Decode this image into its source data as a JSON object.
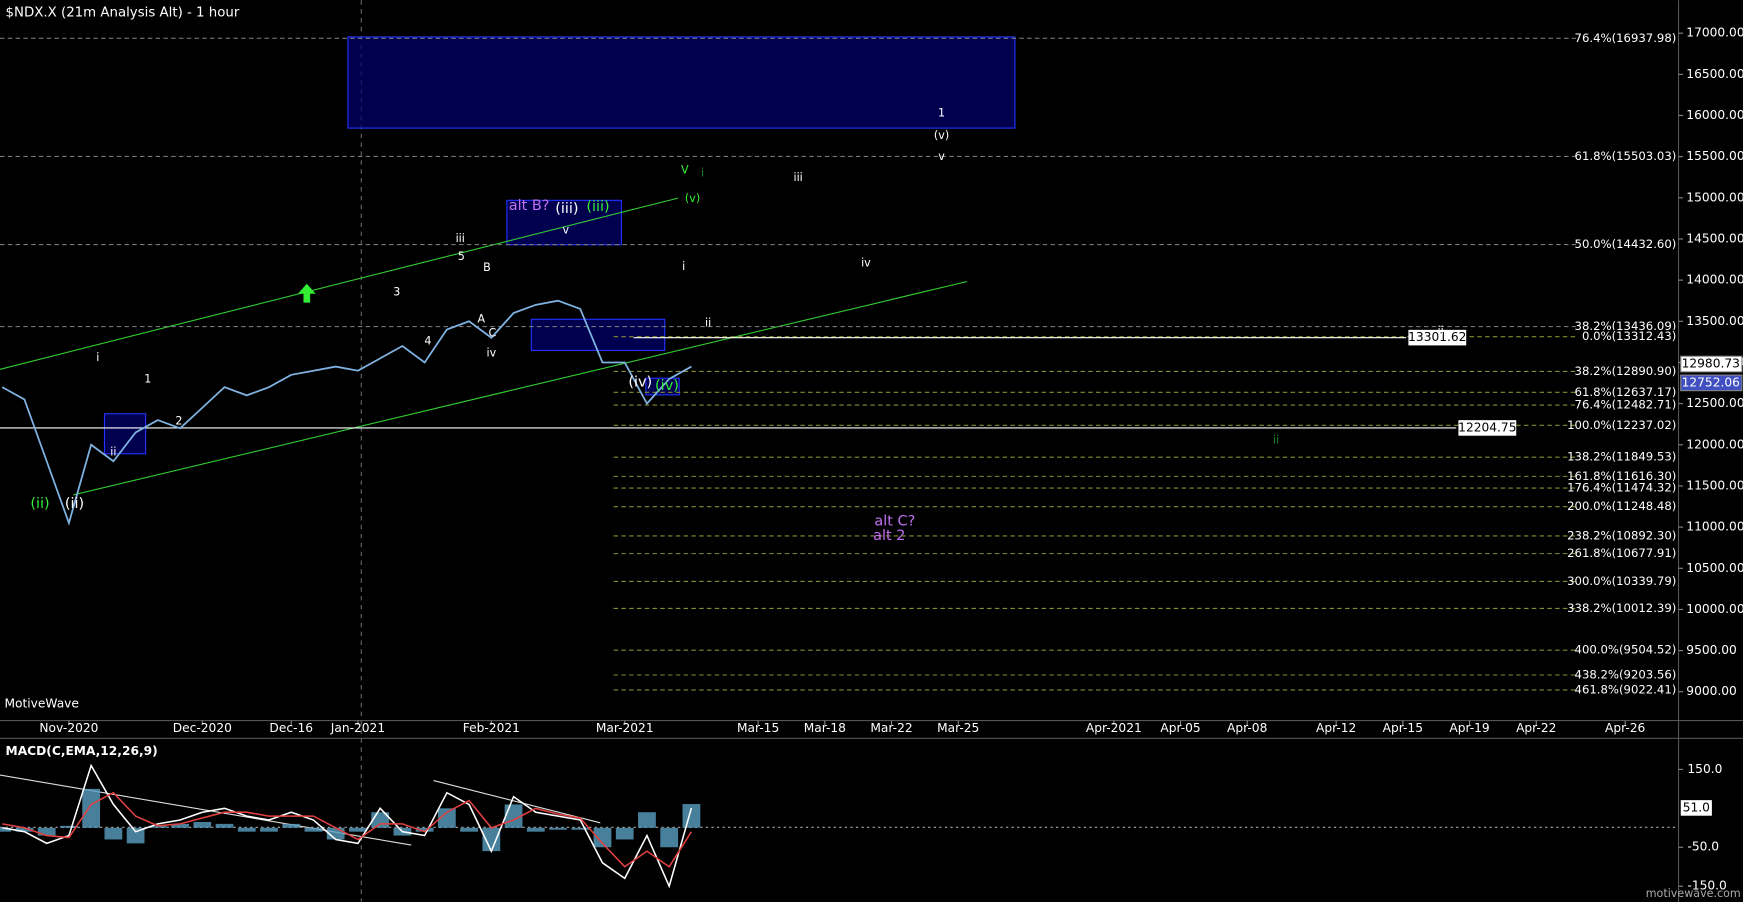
{
  "chart_data": [
    {
      "type": "line",
      "title": "$NDX.X (21m Analysis Alt) - 1 hour",
      "watermark": "MotiveWave",
      "color": "#7fb2e0",
      "categories": [
        null,
        null,
        null,
        "Nov-2020",
        null,
        null,
        null,
        null,
        null,
        "Dec-2020",
        null,
        null,
        null,
        "Dec-16",
        null,
        null,
        "Jan-2021",
        null,
        null,
        null,
        null,
        null,
        "Feb-2021",
        null,
        null,
        null,
        null,
        null,
        "Mar-2021",
        null,
        null,
        null,
        null,
        null,
        "Mar-15",
        null,
        null,
        "Mar-18",
        null,
        null,
        "Mar-22",
        null,
        null,
        "Mar-25",
        null,
        null,
        null,
        null,
        null,
        null,
        "Apr-2021",
        null,
        null,
        "Apr-05",
        null,
        null,
        "Apr-08",
        null,
        null,
        null,
        "Apr-12",
        null,
        null,
        "Apr-15",
        null,
        null,
        "Apr-19",
        null,
        null,
        "Apr-22",
        null,
        null,
        null,
        "Apr-26",
        null,
        null
      ],
      "values": [
        12700,
        12550,
        11800,
        11050,
        12000,
        11800,
        12150,
        12300,
        12200,
        12450,
        12700,
        12600,
        12700,
        12850,
        12900,
        12950,
        12900,
        13050,
        13200,
        13000,
        13400,
        13500,
        13300,
        13600,
        13700,
        13750,
        13650,
        13000,
        13000,
        12500,
        12800,
        12950,
        null,
        null,
        null,
        null,
        null,
        null,
        null,
        null,
        null,
        null,
        null,
        null,
        null,
        null,
        null,
        null,
        null,
        null,
        null,
        null,
        null,
        null,
        null,
        null,
        null,
        null,
        null,
        null,
        null,
        null,
        null,
        null,
        null,
        null,
        null,
        null,
        null,
        null,
        null,
        null,
        null,
        null,
        null,
        null
      ],
      "ylim": [
        8650,
        17400
      ],
      "yticks": [
        {
          "value": 9000,
          "label": "9000.00"
        },
        {
          "value": 9500,
          "label": "9500.00"
        },
        {
          "value": 10000,
          "label": "10000.00"
        },
        {
          "value": 10500,
          "label": "10500.00"
        },
        {
          "value": 11000,
          "label": "11000.00"
        },
        {
          "value": 11500,
          "label": "11500.00"
        },
        {
          "value": 12000,
          "label": "12000.00"
        },
        {
          "value": 12500,
          "label": "12500.00"
        },
        {
          "value": 13000,
          "label": "13000.00"
        },
        {
          "value": 13500,
          "label": "13500.00"
        },
        {
          "value": 14000,
          "label": "14000.00"
        },
        {
          "value": 14500,
          "label": "14500.00"
        },
        {
          "value": 15000,
          "label": "15000.00"
        },
        {
          "value": 15500,
          "label": "15500.00"
        },
        {
          "value": 16000,
          "label": "16000.00"
        },
        {
          "value": 16500,
          "label": "16500.00"
        },
        {
          "value": 17000,
          "label": "17000.00"
        }
      ],
      "fib_levels": [
        {
          "value": 16937.98,
          "label": "76.4%(16937.98)"
        },
        {
          "value": 15503.03,
          "label": "61.8%(15503.03)"
        },
        {
          "value": 14432.6,
          "label": "50.0%(14432.60)"
        },
        {
          "value": 13436.09,
          "label": "38.2%(13436.09)"
        },
        {
          "value": 13312.43,
          "label": "0.0%(13312.43)"
        },
        {
          "value": 12890.9,
          "label": "38.2%(12890.90)"
        },
        {
          "value": 12637.17,
          "label": "61.8%(12637.17)"
        },
        {
          "value": 12482.71,
          "label": "76.4%(12482.71)"
        },
        {
          "value": 12237.02,
          "label": "100.0%(12237.02)"
        },
        {
          "value": 11849.53,
          "label": "138.2%(11849.53)"
        },
        {
          "value": 11616.3,
          "label": "161.8%(11616.30)"
        },
        {
          "value": 11474.32,
          "label": "176.4%(11474.32)"
        },
        {
          "value": 11248.48,
          "label": "200.0%(11248.48)"
        },
        {
          "value": 10892.3,
          "label": "238.2%(10892.30)"
        },
        {
          "value": 10677.91,
          "label": "261.8%(10677.91)"
        },
        {
          "value": 10339.79,
          "label": "300.0%(10339.79)"
        },
        {
          "value": 10012.39,
          "label": "338.2%(10012.39)"
        },
        {
          "value": 9504.52,
          "label": "400.0%(9504.52)"
        },
        {
          "value": 9203.56,
          "label": "438.2%(9203.56)"
        },
        {
          "value": 9022.41,
          "label": "461.8%(9022.41)"
        }
      ],
      "levels": [
        13301.62,
        12204.75
      ],
      "last_price": 12980.73,
      "axis_marker": 12752.06,
      "annotations": [
        {
          "text": "alt B?",
          "color": "#c070f0"
        },
        {
          "text": "alt C?",
          "color": "#c070f0"
        },
        {
          "text": "alt 2",
          "color": "#c070f0"
        },
        {
          "text": "(iii)",
          "color": "#ffffff"
        },
        {
          "text": "(iii)",
          "color": "#33ee33"
        },
        {
          "text": "(v)",
          "color": "#33ee33"
        },
        {
          "text": "V",
          "color": "#33ee33"
        },
        {
          "text": "i",
          "color": "#228822"
        },
        {
          "text": "(iv)",
          "color": "#33ee33"
        },
        {
          "text": "(iv)",
          "color": "#ffffff"
        },
        {
          "text": "(ii)",
          "color": "#33ee33"
        },
        {
          "text": "(ii)",
          "color": "#ffffff"
        },
        {
          "text": "1",
          "color": "#ffffff"
        },
        {
          "text": "(v)",
          "color": "#ffffff"
        },
        {
          "text": "v",
          "color": "#ffffff"
        },
        {
          "text": "iii",
          "color": "#ffffff"
        },
        {
          "text": "iv",
          "color": "#ffffff"
        },
        {
          "text": "i",
          "color": "#ffffff"
        },
        {
          "text": "ii",
          "color": "#ffffff"
        },
        {
          "text": "ii",
          "color": "#ffffff"
        },
        {
          "text": "ii",
          "color": "#228822"
        },
        {
          "text": "iii",
          "color": "#ffffff"
        },
        {
          "text": "v",
          "color": "#ffffff"
        },
        {
          "text": "iv",
          "color": "#ffffff"
        },
        {
          "text": "i",
          "color": "#ffffff"
        },
        {
          "text": "ii",
          "color": "#ffffff"
        },
        {
          "text": "1",
          "color": "#ffffff"
        },
        {
          "text": "2",
          "color": "#ffffff"
        },
        {
          "text": "3",
          "color": "#ffffff"
        },
        {
          "text": "4",
          "color": "#ffffff"
        },
        {
          "text": "5",
          "color": "#ffffff"
        },
        {
          "text": "A",
          "color": "#ffffff"
        },
        {
          "text": "B",
          "color": "#ffffff"
        },
        {
          "text": "C",
          "color": "#ffffff"
        }
      ]
    },
    {
      "type": "line",
      "title": "MACD(C,EMA,12,26,9)",
      "watermark": "motivewave.com",
      "series": [
        {
          "color": "#ffffff",
          "values": [
            0,
            -10,
            -40,
            -20,
            160,
            60,
            -10,
            10,
            20,
            40,
            50,
            30,
            20,
            40,
            20,
            -30,
            -40,
            50,
            -10,
            -20,
            90,
            60,
            -60,
            80,
            40,
            30,
            20,
            -90,
            -130,
            -20,
            -150,
            51,
            null,
            null,
            null,
            null,
            null,
            null,
            null,
            null,
            null,
            null,
            null,
            null,
            null,
            null,
            null,
            null,
            null,
            null,
            null,
            null,
            null,
            null,
            null,
            null,
            null,
            null,
            null,
            null,
            null,
            null,
            null,
            null,
            null,
            null,
            null,
            null,
            null,
            null,
            null,
            null,
            null,
            null,
            null,
            null
          ]
        },
        {
          "color": "#e04040",
          "values": [
            10,
            0,
            -20,
            -25,
            60,
            90,
            30,
            5,
            10,
            25,
            40,
            40,
            30,
            30,
            30,
            0,
            -30,
            10,
            10,
            -10,
            40,
            70,
            0,
            20,
            50,
            35,
            25,
            -40,
            -100,
            -60,
            -100,
            -10,
            null,
            null,
            null,
            null,
            null,
            null,
            null,
            null,
            null,
            null,
            null,
            null,
            null,
            null,
            null,
            null,
            null,
            null,
            null,
            null,
            null,
            null,
            null,
            null,
            null,
            null,
            null,
            null,
            null,
            null,
            null,
            null,
            null,
            null,
            null,
            null,
            null,
            null,
            null,
            null,
            null,
            null,
            null,
            null
          ]
        },
        {
          "color": "#5a9fc0",
          "type": "bar",
          "values": [
            -10,
            -10,
            -20,
            5,
            100,
            -30,
            -40,
            5,
            10,
            15,
            10,
            -10,
            -10,
            10,
            -10,
            -30,
            -10,
            40,
            -20,
            -10,
            50,
            -10,
            -60,
            60,
            -10,
            -5,
            -5,
            -50,
            -30,
            40,
            -50,
            61,
            null,
            null,
            null,
            null,
            null,
            null,
            null,
            null,
            null,
            null,
            null,
            null,
            null,
            null,
            null,
            null,
            null,
            null,
            null,
            null,
            null,
            null,
            null,
            null,
            null,
            null,
            null,
            null,
            null,
            null,
            null,
            null,
            null,
            null,
            null,
            null,
            null,
            null,
            null,
            null,
            null,
            null,
            null,
            null
          ]
        }
      ],
      "ylim": [
        -190,
        224
      ],
      "yticks": [
        {
          "value": 150,
          "label": "150.0"
        },
        {
          "value": -50,
          "label": "-50.0"
        },
        {
          "value": -150,
          "label": "-150.0"
        }
      ],
      "last_value": 51,
      "last_value_label": "51.0"
    }
  ]
}
